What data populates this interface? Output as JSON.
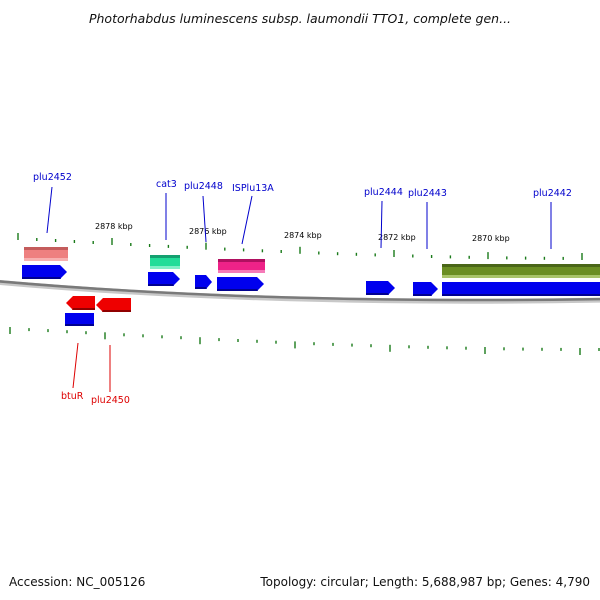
{
  "title": "Photorhabdus luminescens subsp. laumondii TTO1, complete gen...",
  "footer": {
    "accession": "Accession: NC_005126",
    "summary": "Topology: circular; Length: 5,688,987 bp; Genes: 4,790"
  },
  "ruler": {
    "labels": [
      "2878 kbp",
      "2876 kbp",
      "2874 kbp",
      "2872 kbp",
      "2870 kbp"
    ]
  },
  "colors": {
    "backbone": "#808080",
    "cds": "#0000ee",
    "label_forward": "#0000cc",
    "label_reverse": "#dd0000",
    "tick": "#1a7a1a",
    "rrna": "#ee8080",
    "trna": "#22dd99",
    "mobile_element": "#ee2288",
    "region": "#6b8e23",
    "reverse_cds": "#ee0000"
  },
  "labels": {
    "forward": [
      "plu2452",
      "cat3",
      "plu2448",
      "ISPlu13A",
      "plu2444",
      "plu2443",
      "plu2442"
    ],
    "reverse": [
      "btuR",
      "plu2450"
    ]
  }
}
